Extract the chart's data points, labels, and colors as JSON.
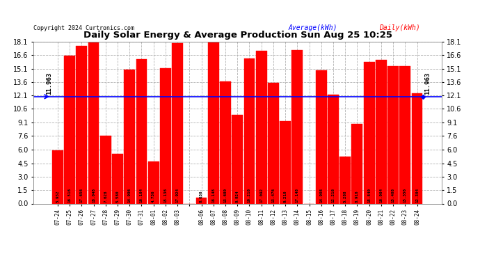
{
  "title": "Daily Solar Energy & Average Production Sun Aug 25 10:25",
  "copyright": "Copyright 2024 Curtronics.com",
  "average_label": "Average(kWh)",
  "daily_label": "Daily(kWh)",
  "average_value": 11.963,
  "categories": [
    "07-24",
    "07-25",
    "07-26",
    "07-27",
    "07-28",
    "07-29",
    "07-30",
    "07-31",
    "08-01",
    "08-02",
    "08-03",
    "",
    "08-06",
    "08-07",
    "08-08",
    "08-09",
    "08-10",
    "08-11",
    "08-12",
    "08-13",
    "08-14",
    "08-15",
    "08-16",
    "08-17",
    "08-18",
    "08-19",
    "08-20",
    "08-21",
    "08-22",
    "08-23",
    "08-24"
  ],
  "values": [
    5.932,
    16.516,
    17.656,
    18.048,
    7.628,
    5.58,
    14.996,
    16.164,
    4.736,
    15.136,
    17.924,
    0.0,
    0.636,
    18.148,
    13.68,
    9.924,
    16.216,
    17.092,
    13.476,
    9.21,
    17.148,
    0.0,
    14.908,
    12.216,
    5.288,
    8.916,
    15.84,
    16.064,
    15.408,
    15.356,
    12.304
  ],
  "bar_color": "#FF0000",
  "bar_edge_color": "#FF0000",
  "avg_line_color": "#0000FF",
  "avg_text_color": "#000000",
  "title_color": "#000000",
  "copyright_color": "#000000",
  "label_avg_color": "#0000FF",
  "label_daily_color": "#FF0000",
  "ylim": [
    0.0,
    18.1
  ],
  "yticks": [
    0.0,
    1.5,
    3.0,
    4.5,
    6.0,
    7.6,
    9.1,
    10.6,
    12.1,
    13.6,
    15.1,
    16.6,
    18.1
  ],
  "background_color": "#FFFFFF",
  "grid_color": "#AAAAAA",
  "figsize": [
    6.9,
    3.75
  ],
  "dpi": 100
}
